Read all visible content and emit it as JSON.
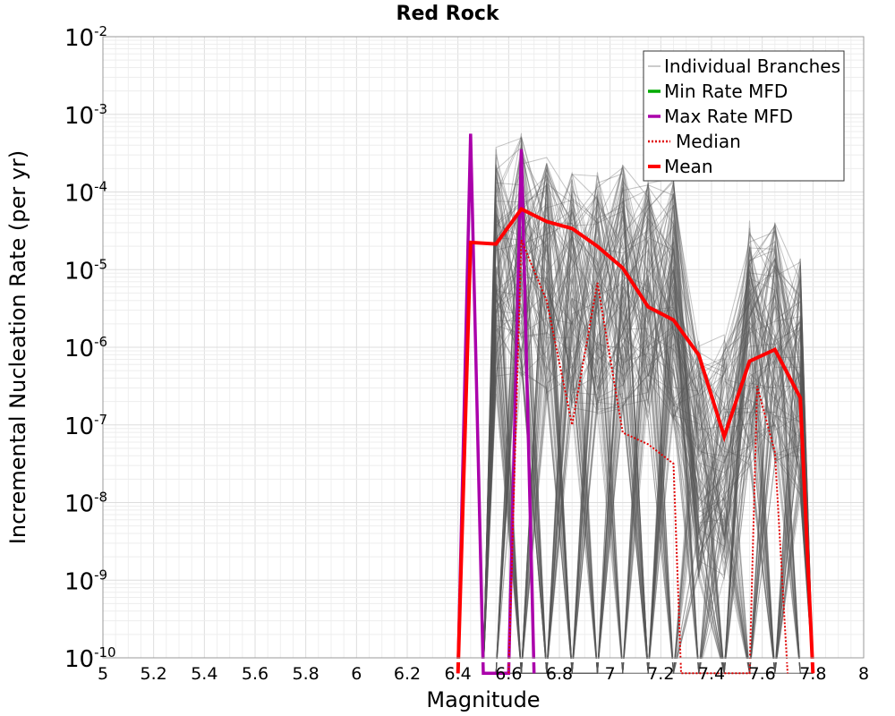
{
  "chart_data": {
    "type": "line",
    "title": "Red Rock",
    "xlabel": "Magnitude",
    "ylabel": "Incremental Nucleation Rate (per yr)",
    "xlim": [
      5,
      8
    ],
    "ylim_log10": [
      -10,
      -2
    ],
    "y_scale": "log",
    "grid": true,
    "legend_position": "top-right",
    "x_ticks": [
      5,
      5.2,
      5.4,
      5.6,
      5.8,
      6,
      6.2,
      6.4,
      6.6,
      6.8,
      7,
      7.2,
      7.4,
      7.6,
      7.8,
      8
    ],
    "x_tick_labels": [
      "5",
      "5.2",
      "5.4",
      "5.6",
      "5.8",
      "6",
      "6.2",
      "6.4",
      "6.6",
      "6.8",
      "7",
      "7.2",
      "7.4",
      "7.6",
      "7.8",
      "8"
    ],
    "y_tick_exponents": [
      -2,
      -3,
      -4,
      -5,
      -6,
      -7,
      -8,
      -9,
      -10
    ],
    "y_tick_base": "10",
    "legend": [
      {
        "key": "branches",
        "label": "Individual Branches",
        "color": "#999999",
        "style": "thin"
      },
      {
        "key": "min",
        "label": "Min Rate MFD",
        "color": "#00aa00",
        "style": "solid"
      },
      {
        "key": "max",
        "label": "Max Rate MFD",
        "color": "#aa00aa",
        "style": "solid"
      },
      {
        "key": "median",
        "label": "Median",
        "color": "#e00000",
        "style": "dotted"
      },
      {
        "key": "mean",
        "label": "Mean",
        "color": "#ff0000",
        "style": "thick"
      }
    ],
    "series": [
      {
        "name": "Max Rate MFD",
        "color": "#aa00aa",
        "x": [
          6.4,
          6.45,
          6.5,
          6.55,
          6.6,
          6.65,
          6.7
        ],
        "log10_rate": [
          -10.2,
          -3.25,
          -10.2,
          -10.2,
          -10.2,
          -3.45,
          -10.2
        ]
      },
      {
        "name": "Mean",
        "color": "#ff0000",
        "x": [
          6.4,
          6.45,
          6.55,
          6.65,
          6.75,
          6.85,
          6.95,
          7.05,
          7.15,
          7.25,
          7.35,
          7.45,
          7.55,
          7.65,
          7.75,
          7.8
        ],
        "log10_rate": [
          -10.2,
          -4.65,
          -4.67,
          -4.22,
          -4.38,
          -4.47,
          -4.7,
          -4.98,
          -5.48,
          -5.65,
          -6.1,
          -7.15,
          -6.18,
          -6.03,
          -6.65,
          -10.2
        ]
      },
      {
        "name": "Median",
        "color": "#e00000",
        "x": [
          6.6,
          6.65,
          6.75,
          6.85,
          6.95,
          7.05,
          7.15,
          7.25,
          7.28,
          7.55,
          7.58,
          7.65,
          7.7
        ],
        "log10_rate": [
          -10.2,
          -4.62,
          -5.4,
          -7.0,
          -5.17,
          -7.1,
          -7.25,
          -7.5,
          -10.2,
          -10.2,
          -6.5,
          -7.35,
          -10.2
        ]
      }
    ],
    "branch_envelope": {
      "name": "Individual Branches",
      "color": "#555555",
      "x": [
        6.55,
        6.65,
        6.75,
        6.85,
        6.95,
        7.05,
        7.15,
        7.25,
        7.35,
        7.45,
        7.55,
        7.65,
        7.75
      ],
      "log10_rate_high": [
        -3.42,
        -3.22,
        -3.55,
        -3.65,
        -3.7,
        -3.65,
        -3.8,
        -3.8,
        -5.8,
        -5.8,
        -4.35,
        -4.35,
        -4.85
      ]
    }
  }
}
